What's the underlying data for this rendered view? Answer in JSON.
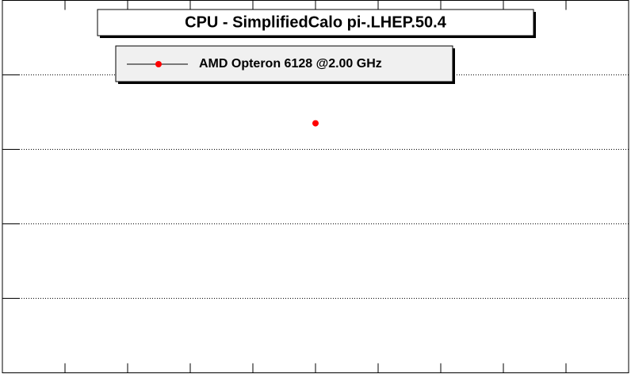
{
  "chart_data": {
    "type": "scatter",
    "title": "CPU - SimplifiedCalo pi-.LHEP.50.4",
    "series": [
      {
        "name": "AMD Opteron 6128 @2.00 GHz",
        "color": "#ff0000",
        "x": [
          5
        ],
        "values": [
          3.35
        ]
      }
    ],
    "xlim": [
      0,
      10
    ],
    "xticks": [
      1,
      2,
      3,
      4,
      5,
      6,
      7,
      8,
      9
    ],
    "ylim": [
      0,
      5
    ],
    "yticks": [
      1,
      2,
      3,
      4
    ],
    "grid": true
  }
}
